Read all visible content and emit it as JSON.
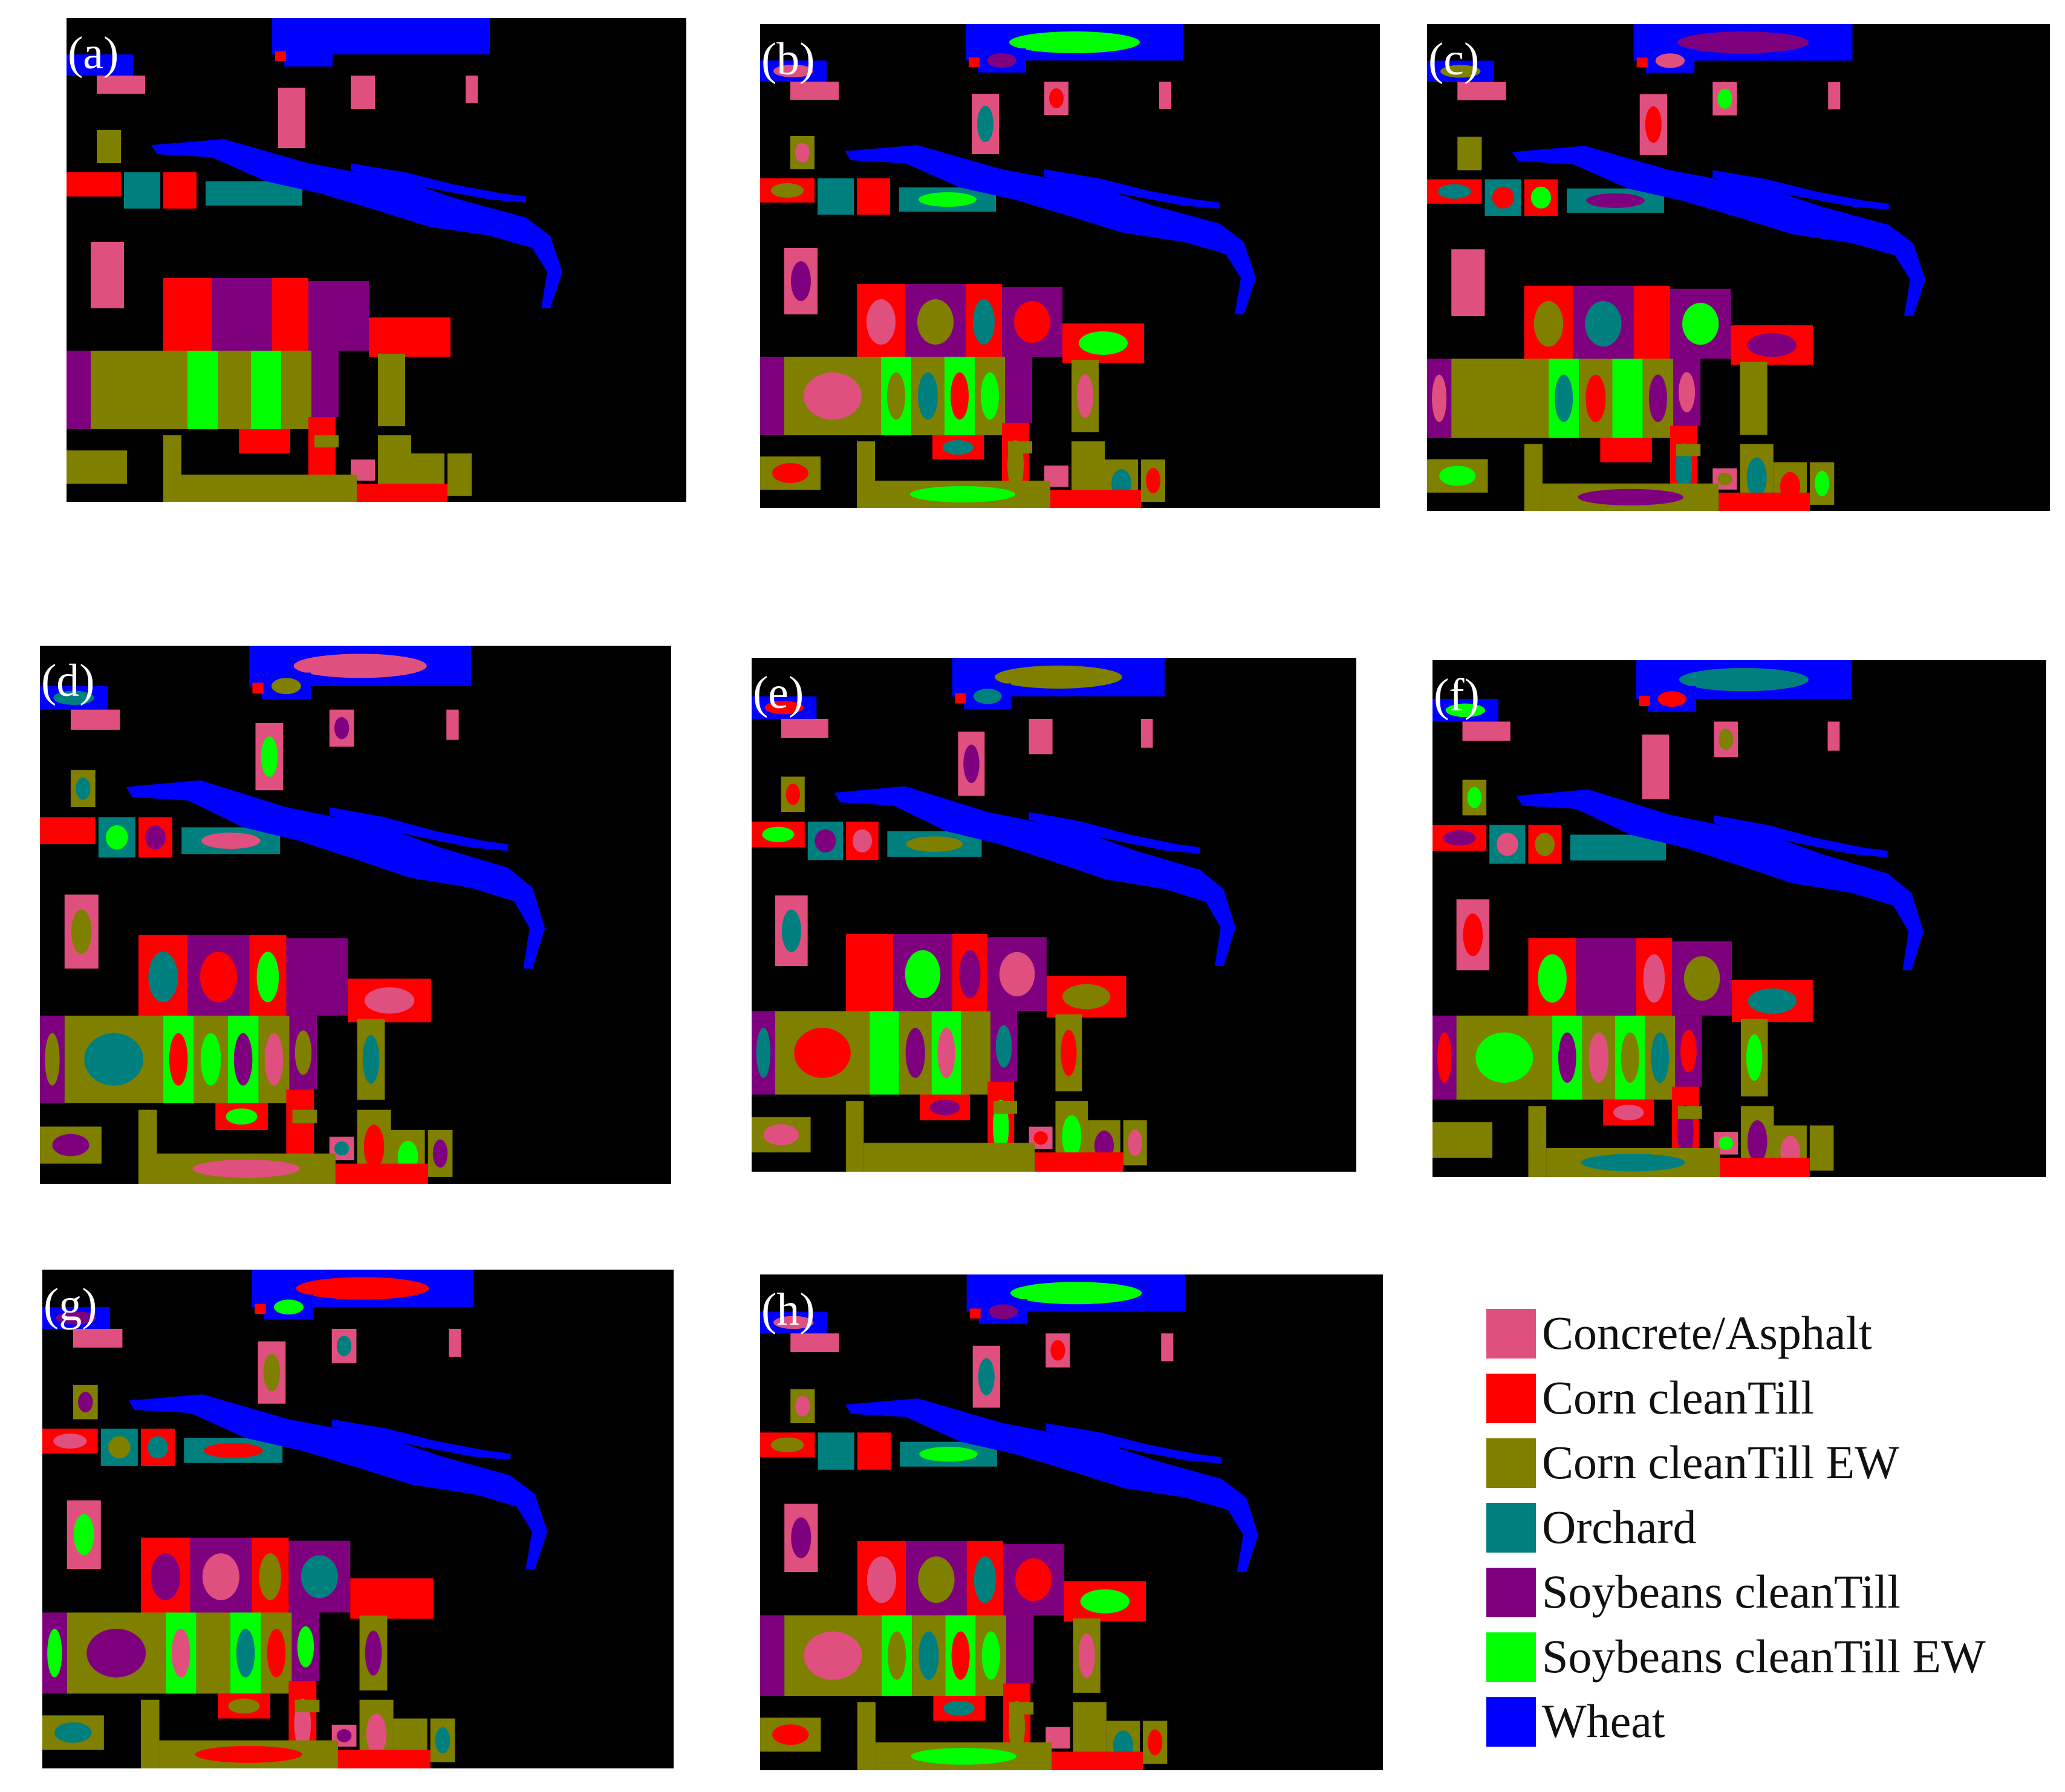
{
  "panels": [
    {
      "label": "(a)"
    },
    {
      "label": "(b)"
    },
    {
      "label": "(c)"
    },
    {
      "label": "(d)"
    },
    {
      "label": "(e)"
    },
    {
      "label": "(f)"
    },
    {
      "label": "(g)"
    },
    {
      "label": "(h)"
    }
  ],
  "legend": [
    {
      "label": "Concrete/Asphalt",
      "color": "#e0507e"
    },
    {
      "label": "Corn cleanTill",
      "color": "#ff0000"
    },
    {
      "label": "Corn cleanTill EW",
      "color": "#7f7f00"
    },
    {
      "label": "Orchard",
      "color": "#007f7f"
    },
    {
      "label": "Soybeans cleanTill",
      "color": "#7f007f"
    },
    {
      "label": "Soybeans cleanTill EW",
      "color": "#00ff00"
    },
    {
      "label": "Wheat",
      "color": "#0000ff"
    }
  ]
}
